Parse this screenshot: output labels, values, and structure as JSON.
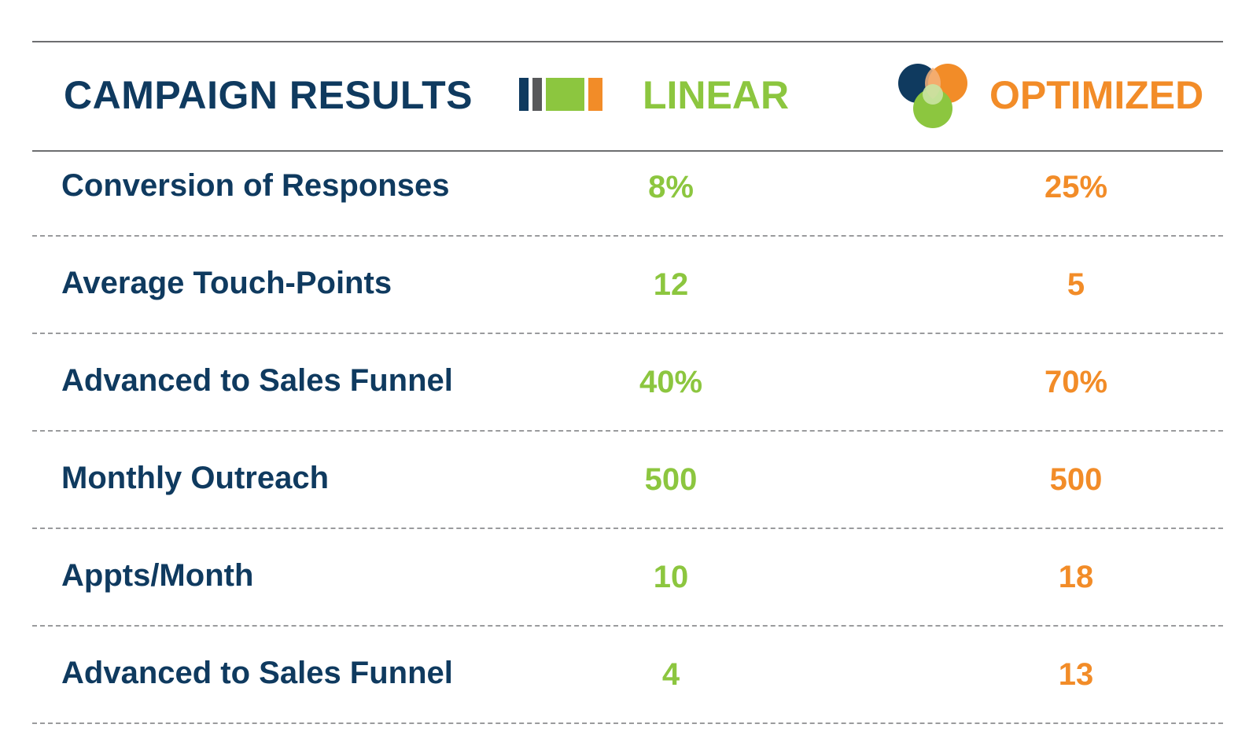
{
  "header": {
    "title": "CAMPAIGN RESULTS",
    "linear_label": "LINEAR",
    "optimized_label": "OPTIMIZED",
    "linear_icon": "bars-icon",
    "optimized_icon": "venn-circles-icon"
  },
  "colors": {
    "navy": "#0f3a5f",
    "gray": "#58595b",
    "green": "#8cc63f",
    "orange": "#f28c28",
    "light_green": "#c9e3a2"
  },
  "rows": [
    {
      "label": "Conversion of Responses",
      "linear": "8%",
      "optimized": "25%"
    },
    {
      "label": "Average Touch-Points",
      "linear": "12",
      "optimized": "5"
    },
    {
      "label": "Advanced to Sales Funnel",
      "linear": "40%",
      "optimized": "70%"
    },
    {
      "label": "Monthly Outreach",
      "linear": "500",
      "optimized": "500"
    },
    {
      "label": "Appts/Month",
      "linear": "10",
      "optimized": "18"
    },
    {
      "label": "Advanced to Sales Funnel",
      "linear": "4",
      "optimized": "13"
    }
  ]
}
